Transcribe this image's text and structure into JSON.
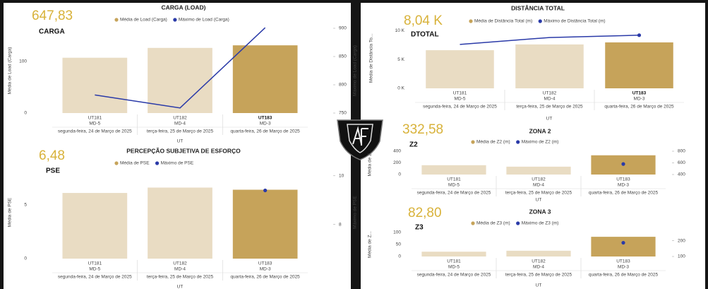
{
  "chart_data": [
    {
      "type": "bar",
      "title": "CARGA (LOAD)",
      "kpi": {
        "value": "647,83",
        "label": "CARGA"
      },
      "categories": [
        "UT181",
        "UT182",
        "UT183"
      ],
      "subcategories": [
        "MD-5",
        "MD-4",
        "MD-3"
      ],
      "dates": [
        "segunda-feira, 24 de Março de 2025",
        "terça-feira, 25 de Março de 2025",
        "quarta-feira, 26 de Março de 2025"
      ],
      "highlight_index": 2,
      "xlabel": "UT",
      "ylabel": "Média de Load (Carga)",
      "y2label": "Máximo de Load (Carga)",
      "ylim": [
        0,
        164
      ],
      "yticks": [
        0,
        100
      ],
      "y2lim": [
        750,
        900
      ],
      "y2ticks": [
        750,
        800,
        850,
        900
      ],
      "series": [
        {
          "name": "Média de Load (Carga)",
          "color": "#c6a35a",
          "point_colors": [
            "#e9dcc3",
            "#e9dcc3",
            "#c6a35a"
          ],
          "values": [
            107,
            126,
            131
          ]
        },
        {
          "name": "Máximo de Load (Carga)",
          "color": "#2a3aa8",
          "axis": "y2",
          "marker": false,
          "values": [
            782,
            759,
            901
          ]
        }
      ]
    },
    {
      "type": "bar",
      "title": "PERCEPÇÃO SUBJETIVA DE ESFORÇO",
      "kpi": {
        "value": "6,48",
        "label": "PSE"
      },
      "categories": [
        "UT181",
        "UT182",
        "UT183"
      ],
      "subcategories": [
        "MD-5",
        "MD-4",
        "MD-3"
      ],
      "dates": [
        "segunda-feira, 24 de Março de 2025",
        "terça-feira, 25 de Março de 2025",
        "quarta-feira, 26 de Março de 2025"
      ],
      "xlabel": "UT",
      "ylabel": "Média de PSE",
      "y2label": "Máximo de PSE",
      "ylim": [
        0,
        8.6
      ],
      "yticks": [
        0,
        5
      ],
      "y2lim": [
        6.6,
        10.4
      ],
      "y2ticks": [
        8,
        10
      ],
      "series": [
        {
          "name": "Média de PSE",
          "color": "#c6a35a",
          "point_colors": [
            "#e9dcc3",
            "#e9dcc3",
            "#c6a35a"
          ],
          "values": [
            6.1,
            6.6,
            6.4
          ]
        },
        {
          "name": "Máximo de PSE",
          "color": "#2a3aa8",
          "axis": "y2",
          "marker": true,
          "values": [
            null,
            null,
            9.4
          ]
        }
      ]
    },
    {
      "type": "bar",
      "title": "DISTÂNCIA TOTAL",
      "kpi": {
        "value": "8,04 K",
        "label": "DTOTAL"
      },
      "categories": [
        "UT181",
        "UT182",
        "UT183"
      ],
      "subcategories": [
        "MD-5",
        "MD-4",
        "MD-3"
      ],
      "dates": [
        "segunda-feira, 24 de Março de 2025",
        "terça-feira, 25 de Março de 2025",
        "quarta-feira, 26 de Março de 2025"
      ],
      "highlight_index": 2,
      "xlabel": "UT",
      "ylabel": "Média de Distância To...",
      "ylim": [
        0,
        10400
      ],
      "yticks": [
        {
          "value": 0,
          "label": "0 K"
        },
        {
          "value": 5000,
          "label": "5 K"
        },
        {
          "value": 10000,
          "label": "10 K"
        }
      ],
      "series": [
        {
          "name": "Média de Distância Total (m)",
          "color": "#c6a35a",
          "point_colors": [
            "#e9dcc3",
            "#e9dcc3",
            "#c6a35a"
          ],
          "values": [
            6600,
            7600,
            7950
          ]
        },
        {
          "name": "Máximo de Distância Total (m)",
          "color": "#2a3aa8",
          "marker": true,
          "values": [
            7600,
            8800,
            9200
          ]
        }
      ]
    },
    {
      "type": "bar",
      "title": "ZONA 2",
      "kpi": {
        "value": "332,58",
        "label": "Z2"
      },
      "categories": [
        "UT181",
        "UT182",
        "UT183"
      ],
      "subcategories": [
        "MD-5",
        "MD-4",
        "MD-3"
      ],
      "dates": [
        "segunda-feira, 24 de Março de 2025",
        "terça-feira, 25 de Março de 2025",
        "quarta-feira, 26 de Março de 2025"
      ],
      "xlabel": "UT",
      "ylabel": "Média de Z...",
      "ylim": [
        0,
        400
      ],
      "yticks": [
        0,
        200,
        400
      ],
      "y2lim": [
        400,
        800
      ],
      "y2ticks": [
        400,
        600,
        800
      ],
      "series": [
        {
          "name": "Média de Z2 (m)",
          "color": "#c6a35a",
          "point_colors": [
            "#e9dcc3",
            "#e9dcc3",
            "#c6a35a"
          ],
          "values": [
            160,
            135,
            330
          ]
        },
        {
          "name": "Máximo de Z2 (m)",
          "color": "#2a3aa8",
          "axis": "y2",
          "marker": true,
          "values": [
            null,
            null,
            580
          ]
        }
      ]
    },
    {
      "type": "bar",
      "title": "ZONA 3",
      "kpi": {
        "value": "82,80",
        "label": "Z3"
      },
      "categories": [
        "UT181",
        "UT182",
        "UT183"
      ],
      "subcategories": [
        "MD-5",
        "MD-4",
        "MD-3"
      ],
      "dates": [
        "segunda-feira, 24 de Março de 2025",
        "terça-feira, 25 de Março de 2025",
        "quarta-feira, 26 de Março de 2025"
      ],
      "xlabel": "UT",
      "ylabel": "Média de Z...",
      "ylim": [
        0,
        100
      ],
      "yticks": [
        0,
        50,
        100
      ],
      "y2lim": [
        100,
        252
      ],
      "y2ticks": [
        100,
        200
      ],
      "series": [
        {
          "name": "Média de Z3 (m)",
          "color": "#c6a35a",
          "point_colors": [
            "#e9dcc3",
            "#e9dcc3",
            "#c6a35a"
          ],
          "values": [
            20,
            24,
            82
          ]
        },
        {
          "name": "Máximo de Z3 (m)",
          "color": "#2a3aa8",
          "axis": "y2",
          "marker": true,
          "values": [
            null,
            null,
            187
          ]
        }
      ]
    }
  ]
}
